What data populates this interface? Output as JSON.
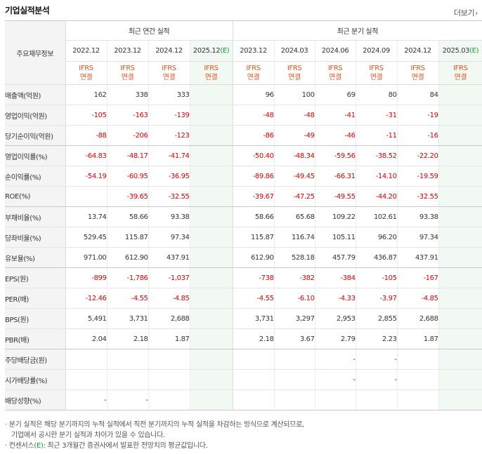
{
  "title": "기업실적분석",
  "more_label": "더보기",
  "table": {
    "label_header": "주요재무정보",
    "annual_header": "최근 연간 실적",
    "quarterly_header": "최근 분기 실적",
    "estimate_mark": "(E)",
    "annual_dates": [
      "2022.12",
      "2023.12",
      "2024.12",
      "2025.12"
    ],
    "quarterly_dates": [
      "2023.12",
      "2024.03",
      "2024.06",
      "2024.09",
      "2024.12",
      "2025.03"
    ],
    "accounting_top": "IFRS",
    "accounting_bottom": "연결",
    "rows": [
      {
        "label": "매출액(억원)",
        "values": [
          "162",
          "338",
          "333",
          "",
          "96",
          "100",
          "69",
          "80",
          "84",
          ""
        ]
      },
      {
        "label": "영업이익(억원)",
        "values": [
          "-105",
          "-163",
          "-139",
          "",
          "-48",
          "-48",
          "-41",
          "-31",
          "-19",
          ""
        ]
      },
      {
        "label": "당기순이익(억원)",
        "values": [
          "-88",
          "-206",
          "-123",
          "",
          "-86",
          "-49",
          "-46",
          "-11",
          "-16",
          ""
        ]
      },
      {
        "label": "영업이익률(%)",
        "values": [
          "-64.83",
          "-48.17",
          "-41.74",
          "",
          "-50.40",
          "-48.34",
          "-59.56",
          "-38.52",
          "-22.20",
          ""
        ]
      },
      {
        "label": "순이익률(%)",
        "values": [
          "-54.19",
          "-60.95",
          "-36.95",
          "",
          "-89.86",
          "-49.45",
          "-66.31",
          "-14.10",
          "-19.59",
          ""
        ]
      },
      {
        "label": "ROE(%)",
        "values": [
          "",
          "-39.65",
          "-32.55",
          "",
          "-39.67",
          "-47.25",
          "-49.55",
          "-44.20",
          "-32.55",
          ""
        ]
      },
      {
        "label": "부채비율(%)",
        "values": [
          "13.74",
          "58.66",
          "93.38",
          "",
          "58.66",
          "65.68",
          "109.22",
          "102.61",
          "93.38",
          ""
        ]
      },
      {
        "label": "당좌비율(%)",
        "values": [
          "529.45",
          "115.87",
          "97.34",
          "",
          "115.87",
          "116.74",
          "105.11",
          "96.20",
          "97.34",
          ""
        ]
      },
      {
        "label": "유보율(%)",
        "values": [
          "971.00",
          "612.90",
          "437.91",
          "",
          "612.90",
          "528.18",
          "457.79",
          "436.87",
          "437.91",
          ""
        ]
      },
      {
        "label": "EPS(원)",
        "values": [
          "-899",
          "-1,786",
          "-1,037",
          "",
          "-738",
          "-382",
          "-384",
          "-105",
          "-167",
          ""
        ]
      },
      {
        "label": "PER(배)",
        "values": [
          "-12.46",
          "-4.55",
          "-4.85",
          "",
          "-4.55",
          "-6.10",
          "-4.33",
          "-3.97",
          "-4.85",
          ""
        ]
      },
      {
        "label": "BPS(원)",
        "values": [
          "5,491",
          "3,731",
          "2,688",
          "",
          "3,731",
          "3,297",
          "2,953",
          "2,855",
          "2,688",
          ""
        ]
      },
      {
        "label": "PBR(배)",
        "values": [
          "2.04",
          "2.18",
          "1.87",
          "",
          "2.18",
          "3.67",
          "2.79",
          "2.23",
          "1.87",
          ""
        ]
      },
      {
        "label": "주당배당금(원)",
        "values": [
          "",
          "",
          "",
          "",
          "",
          "",
          "-",
          "-",
          "",
          ""
        ]
      },
      {
        "label": "시가배당률(%)",
        "values": [
          "",
          "",
          "",
          "",
          "",
          "",
          "-",
          "-",
          "",
          ""
        ]
      },
      {
        "label": "배당성향(%)",
        "values": [
          "-",
          "-",
          "",
          "",
          "",
          "",
          "",
          "",
          "",
          ""
        ]
      }
    ]
  },
  "notes": {
    "line1": "· 분기 실적은 해당 분기까지의 누적 실적에서 직전 분기까지의 누적 실적을 차감하는 방식으로 계산되므로,",
    "line2": "기업에서 공시한 분기 실적과 차이가 있을 수 있습니다.",
    "line3_pre": "· 컨센서스",
    "line3_mark": "(E)",
    "line3_post": ": 최근 3개월간 증권사에서 발표한 전망치의 평균값입니다."
  },
  "colors": {
    "negative": "#d80000",
    "accounting": "#e5531e",
    "estimate": "#199a3a",
    "label_bg": "#f4f4f4",
    "estimate_bg": "#f2f9f2"
  }
}
